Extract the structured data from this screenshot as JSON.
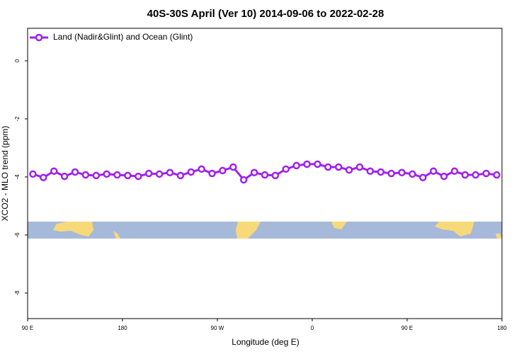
{
  "chart_data": {
    "type": "line",
    "title": "40S-30S April (Ver 10)   2014-09-06 to 2022-02-28",
    "x_label": "Longitude (deg E)",
    "y_label": "XCO2 - MLO trend (ppm)",
    "x": [
      95,
      105,
      115,
      125,
      135,
      145,
      155,
      165,
      175,
      185,
      195,
      205,
      215,
      225,
      235,
      245,
      255,
      265,
      275,
      285,
      295,
      305,
      315,
      325,
      335,
      345,
      355,
      365,
      375,
      385,
      395,
      405,
      415,
      425,
      435,
      445,
      455,
      465,
      475,
      485,
      495,
      505,
      515,
      525,
      535
    ],
    "series": [
      {
        "name": "Land (Nadir&Glint) and Ocean (Glint)",
        "color": "#a020f0",
        "values": [
          -3.9,
          -4.02,
          -3.8,
          -3.98,
          -3.83,
          -3.93,
          -3.95,
          -3.9,
          -3.93,
          -3.95,
          -3.98,
          -3.88,
          -3.9,
          -3.85,
          -3.95,
          -3.83,
          -3.73,
          -3.88,
          -3.78,
          -3.66,
          -4.1,
          -3.85,
          -3.93,
          -3.95,
          -3.73,
          -3.61,
          -3.56,
          -3.56,
          -3.66,
          -3.66,
          -3.76,
          -3.66,
          -3.8,
          -3.83,
          -3.88,
          -3.85,
          -3.9,
          -4.02,
          -3.8,
          -3.98,
          -3.8,
          -3.93,
          -3.93,
          -3.88,
          -3.93
        ]
      }
    ],
    "xlim": [
      90,
      540
    ],
    "xticks": [
      {
        "value": 90,
        "label": "90 E"
      },
      {
        "value": 180,
        "label": "180"
      },
      {
        "value": 270,
        "label": "90 W"
      },
      {
        "value": 360,
        "label": "0"
      },
      {
        "value": 450,
        "label": "90 E"
      },
      {
        "value": 540,
        "label": "180"
      }
    ],
    "ylim": [
      -8.88,
      1.12
    ],
    "yticks": [
      0,
      -2,
      -4,
      -6,
      -8
    ],
    "legend": "top-left"
  }
}
